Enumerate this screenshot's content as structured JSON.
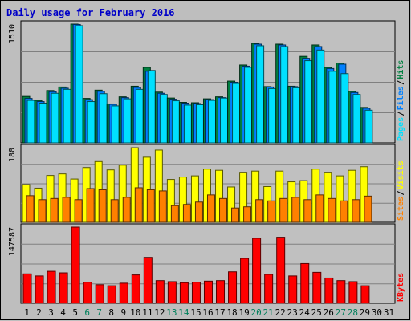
{
  "colors": {
    "background": "#bebebe",
    "panel_bg": "#c0c0c0",
    "title": "#0000c8",
    "hits": "#008040",
    "files": "#0080ff",
    "pages": "#00e0ff",
    "visits": "#ffff00",
    "sites": "#ff8000",
    "kbytes": "#ff0000",
    "weekday_label": "#000000",
    "weekend_label": "#00805c"
  },
  "chart_data": {
    "type": "bar",
    "title": "Daily usage for February 2016",
    "x": [
      "1",
      "2",
      "3",
      "4",
      "5",
      "6",
      "7",
      "8",
      "9",
      "10",
      "11",
      "12",
      "13",
      "14",
      "15",
      "16",
      "17",
      "18",
      "19",
      "20",
      "21",
      "22",
      "23",
      "24",
      "25",
      "26",
      "27",
      "28",
      "29",
      "30",
      "31"
    ],
    "weekend_days": [
      "6",
      "7",
      "13",
      "14",
      "20",
      "21",
      "27",
      "28"
    ],
    "panels": [
      {
        "id": "top",
        "max_label": "1510",
        "ylim": [
          0,
          1510
        ],
        "legend": [
          "Pages",
          "Files",
          "Hits"
        ],
        "series": [
          {
            "name": "Hits",
            "values": [
              590,
              540,
              665,
              710,
              1510,
              565,
              670,
              495,
              585,
              720,
              960,
              645,
              570,
              515,
              510,
              560,
              585,
              785,
              990,
              1265,
              715,
              1255,
              720,
              1100,
              1245,
              960,
              1015,
              655,
              450,
              0,
              0
            ]
          },
          {
            "name": "Files",
            "values": [
              565,
              525,
              650,
              695,
              1505,
              550,
              655,
              490,
              575,
              705,
              910,
              630,
              555,
              505,
              500,
              550,
              575,
              770,
              975,
              1255,
              710,
              1245,
              715,
              1075,
              1225,
              945,
              1000,
              640,
              440,
              0,
              0
            ]
          },
          {
            "name": "Pages",
            "values": [
              540,
              505,
              630,
              680,
              1490,
              525,
              625,
              470,
              560,
              680,
              920,
              615,
              535,
              480,
              485,
              540,
              570,
              755,
              960,
              1235,
              690,
              1225,
              700,
              1045,
              1180,
              910,
              880,
              615,
              415,
              0,
              0
            ]
          }
        ]
      },
      {
        "id": "middle",
        "max_label": "188",
        "ylim": [
          0,
          188
        ],
        "legend": [
          "Sites",
          "Visits"
        ],
        "series": [
          {
            "name": "Visits",
            "values": [
              95,
              86,
              118,
              122,
              109,
              138,
              153,
              132,
              144,
              188,
              164,
              182,
              108,
              114,
              117,
              134,
              131,
              89,
              126,
              129,
              90,
              129,
              102,
              105,
              134,
              126,
              117,
              131,
              140,
              0,
              0
            ]
          },
          {
            "name": "Sites",
            "values": [
              67,
              57,
              60,
              63,
              57,
              85,
              82,
              57,
              63,
              87,
              82,
              79,
              42,
              45,
              51,
              69,
              60,
              36,
              39,
              57,
              54,
              60,
              63,
              57,
              69,
              60,
              54,
              57,
              66,
              0,
              0
            ]
          }
        ]
      },
      {
        "id": "bottom",
        "max_label": "147587",
        "ylim": [
          0,
          147587
        ],
        "legend": [
          "KBytes"
        ],
        "series": [
          {
            "name": "KBytes",
            "values": [
              57000,
              53000,
              62000,
              59000,
              147587,
              41000,
              36000,
              34000,
              39000,
              55000,
              89000,
              44000,
              42000,
              40000,
              41000,
              43000,
              44000,
              61000,
              87000,
              126000,
              56000,
              128000,
              53000,
              77000,
              60000,
              49000,
              44000,
              42000,
              34000,
              0,
              0
            ]
          }
        ]
      }
    ],
    "grid": true
  }
}
